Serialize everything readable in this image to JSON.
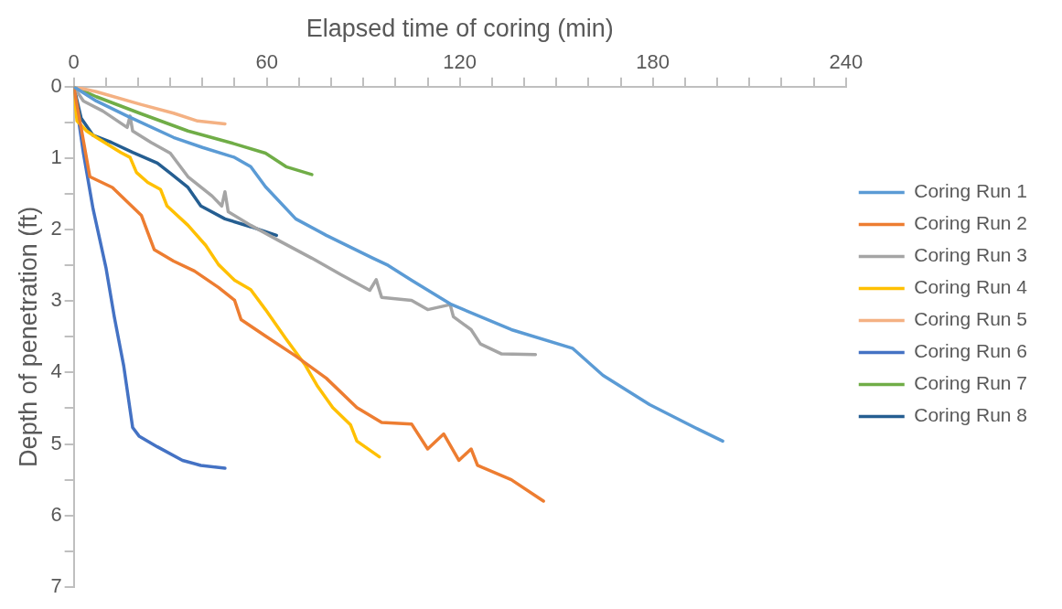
{
  "chart_data": {
    "type": "line",
    "xlabel": "Elapsed time of coring (min)",
    "ylabel": "Depth of penetration (ft)",
    "xlim": [
      0,
      240
    ],
    "ylim": [
      7,
      0
    ],
    "xticks": [
      0,
      {
        "value": 10,
        "label": null
      },
      {
        "value": 20,
        "label": null
      },
      {
        "value": 30,
        "label": null
      },
      {
        "value": 40,
        "label": null
      },
      {
        "value": 50,
        "label": null
      },
      60,
      {
        "value": 70,
        "label": null
      },
      {
        "value": 80,
        "label": null
      },
      {
        "value": 90,
        "label": null
      },
      {
        "value": 100,
        "label": null
      },
      {
        "value": 110,
        "label": null
      },
      120,
      {
        "value": 130,
        "label": null
      },
      {
        "value": 140,
        "label": null
      },
      {
        "value": 150,
        "label": null
      },
      {
        "value": 160,
        "label": null
      },
      {
        "value": 170,
        "label": null
      },
      180,
      {
        "value": 190,
        "label": null
      },
      {
        "value": 200,
        "label": null
      },
      {
        "value": 210,
        "label": null
      },
      {
        "value": 220,
        "label": null
      },
      {
        "value": 230,
        "label": null
      },
      240
    ],
    "yticks": [
      0,
      {
        "value": 0.5,
        "label": null
      },
      1,
      {
        "value": 1.5,
        "label": null
      },
      2,
      {
        "value": 2.5,
        "label": null
      },
      3,
      {
        "value": 3.5,
        "label": null
      },
      4,
      {
        "value": 4.5,
        "label": null
      },
      5,
      {
        "value": 5.5,
        "label": null
      },
      6,
      {
        "value": 6.5,
        "label": null
      },
      7
    ],
    "grid": false,
    "legend": "right",
    "marker": "none",
    "line_style": "solid",
    "series": [
      {
        "name": "Coring Run 1",
        "color": "#5b9bd5",
        "x": [
          0,
          7,
          16.6,
          31,
          40,
          50,
          55,
          59.6,
          69,
          78.5,
          93,
          97.7,
          105,
          117,
          136,
          155,
          164.5,
          179,
          193,
          201.7
        ],
        "values": [
          0,
          0.2,
          0.41,
          0.71,
          0.85,
          0.99,
          1.12,
          1.4,
          1.85,
          2.08,
          2.4,
          2.5,
          2.71,
          3.04,
          3.4,
          3.66,
          4.04,
          4.45,
          4.77,
          4.96
        ]
      },
      {
        "name": "Coring Run 2",
        "color": "#ed7d31",
        "x": [
          0,
          5,
          12,
          21,
          25,
          31,
          37.5,
          45,
          50,
          52,
          59.6,
          69,
          78.5,
          88,
          95.7,
          105,
          110,
          115,
          119.7,
          123.5,
          125.5,
          136,
          146
        ],
        "values": [
          0,
          1.26,
          1.41,
          1.8,
          2.28,
          2.44,
          2.58,
          2.81,
          2.99,
          3.26,
          3.49,
          3.77,
          4.08,
          4.49,
          4.7,
          4.72,
          5.07,
          4.86,
          5.23,
          5.07,
          5.3,
          5.5,
          5.8
        ]
      },
      {
        "name": "Coring Run 3",
        "color": "#a5a5a5",
        "x": [
          0,
          3,
          9,
          16.6,
          17.5,
          18.3,
          24,
          30,
          35.5,
          43,
          46,
          47,
          48,
          55,
          64,
          74,
          83,
          92,
          94,
          95.7,
          105,
          110,
          117,
          118,
          123.5,
          126.4,
          133,
          143.5
        ],
        "values": [
          0,
          0.2,
          0.34,
          0.57,
          0.41,
          0.62,
          0.78,
          0.93,
          1.26,
          1.53,
          1.67,
          1.47,
          1.75,
          1.94,
          2.16,
          2.4,
          2.63,
          2.85,
          2.7,
          2.95,
          2.99,
          3.12,
          3.05,
          3.22,
          3.4,
          3.6,
          3.74,
          3.75
        ]
      },
      {
        "name": "Coring Run 4",
        "color": "#ffc000",
        "x": [
          0,
          1,
          4,
          7,
          14.6,
          17.5,
          19.5,
          23,
          27,
          29,
          35.5,
          41,
          45,
          50,
          55,
          59.6,
          66,
          72,
          75.6,
          80.5,
          86,
          88,
          95
        ],
        "values": [
          0,
          0.48,
          0.62,
          0.71,
          0.92,
          0.99,
          1.2,
          1.34,
          1.44,
          1.67,
          1.94,
          2.22,
          2.49,
          2.71,
          2.84,
          3.12,
          3.53,
          3.9,
          4.18,
          4.49,
          4.73,
          4.96,
          5.18
        ]
      },
      {
        "name": "Coring Run 5",
        "color": "#f4b183",
        "x": [
          0,
          7,
          21,
          31,
          38.5,
          47
        ],
        "values": [
          0,
          0.07,
          0.25,
          0.37,
          0.48,
          0.52
        ]
      },
      {
        "name": "Coring Run 6",
        "color": "#4472c4",
        "x": [
          0,
          3,
          6,
          10,
          12.6,
          15.5,
          18.3,
          20.3,
          26,
          33.8,
          39.5,
          47
        ],
        "values": [
          0,
          0.93,
          1.71,
          2.53,
          3.22,
          3.9,
          4.77,
          4.89,
          5.04,
          5.23,
          5.3,
          5.34
        ]
      },
      {
        "name": "Coring Run 7",
        "color": "#70ad47",
        "x": [
          0,
          7,
          21,
          35.5,
          50,
          59.6,
          66,
          74
        ],
        "values": [
          0,
          0.14,
          0.38,
          0.62,
          0.8,
          0.93,
          1.12,
          1.23
        ]
      },
      {
        "name": "Coring Run 8",
        "color": "#255e91",
        "x": [
          0,
          2.3,
          6,
          11.7,
          18.3,
          26,
          30,
          35.5,
          39.5,
          47,
          55,
          63
        ],
        "values": [
          0,
          0.44,
          0.68,
          0.78,
          0.92,
          1.07,
          1.21,
          1.41,
          1.67,
          1.85,
          1.96,
          2.08
        ]
      }
    ]
  }
}
